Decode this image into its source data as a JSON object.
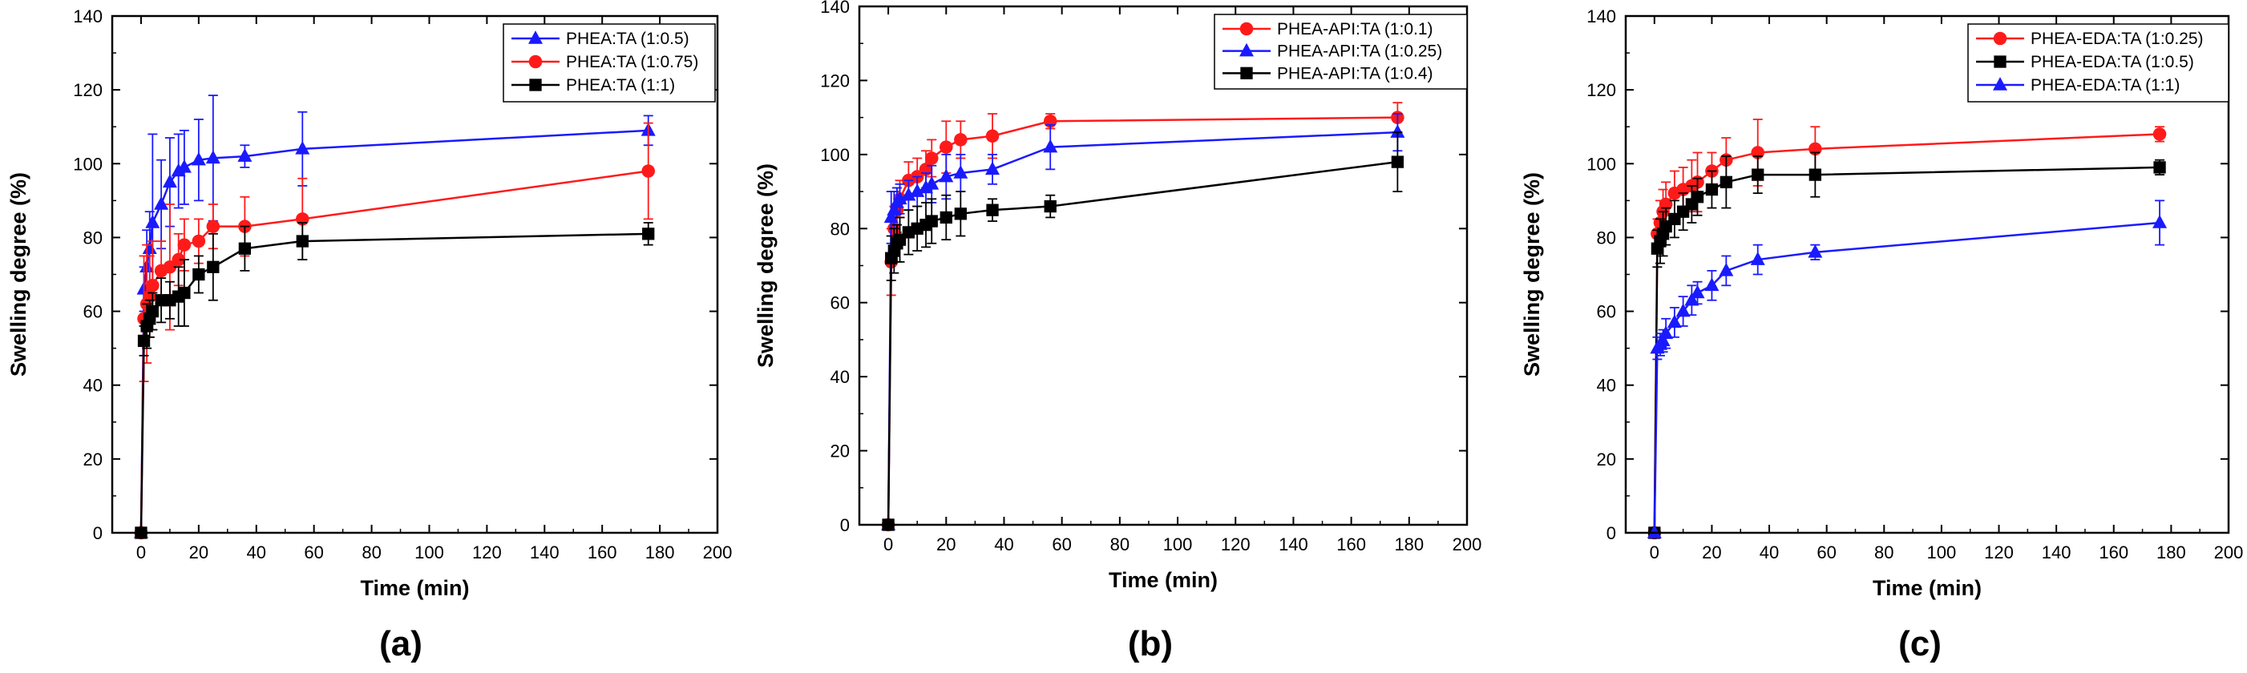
{
  "chart_data": [
    {
      "type": "line",
      "panel_label": "(a)",
      "xlabel": "Time (min)",
      "ylabel": "Swelling degree (%)",
      "xlim": [
        -10,
        200
      ],
      "ylim": [
        0,
        140
      ],
      "xticks": [
        0,
        20,
        40,
        60,
        80,
        100,
        120,
        140,
        160,
        180,
        200
      ],
      "yticks": [
        0,
        20,
        40,
        60,
        80,
        100,
        120,
        140
      ],
      "legend_position": "top-right",
      "x": [
        0,
        1,
        2,
        3,
        4,
        7,
        10,
        13,
        15,
        20,
        25,
        36,
        56,
        176
      ],
      "series": [
        {
          "name": "PHEA:TA (1:0.5)",
          "color": "#1a1aff",
          "marker": "triangle",
          "values": [
            0,
            66,
            72,
            77,
            84,
            89,
            95,
            98,
            99,
            101,
            101.5,
            102,
            104,
            109
          ],
          "errors": [
            0,
            6,
            10,
            10,
            24,
            12,
            12,
            10,
            10,
            11,
            17,
            3,
            10,
            4
          ]
        },
        {
          "name": "PHEA:TA (1:0.75)",
          "color": "#ff1a1a",
          "marker": "circle",
          "values": [
            0,
            58,
            62,
            64,
            67,
            71,
            72,
            74,
            78,
            79,
            83,
            83,
            85,
            98
          ],
          "errors": [
            0,
            17,
            16,
            11,
            12,
            8,
            17,
            7,
            7,
            6,
            6,
            8,
            11,
            13
          ]
        },
        {
          "name": "PHEA:TA (1:1)",
          "color": "#000000",
          "marker": "square",
          "values": [
            0,
            52,
            56,
            58,
            60,
            63,
            63,
            64,
            65,
            70,
            72,
            77,
            79,
            81
          ],
          "errors": [
            0,
            4,
            6,
            5,
            5,
            6,
            5,
            8,
            9,
            5,
            9,
            6,
            5,
            3
          ]
        }
      ]
    },
    {
      "type": "line",
      "panel_label": "(b)",
      "xlabel": "Time (min)",
      "ylabel": "Swelling degree (%)",
      "xlim": [
        -10,
        200
      ],
      "ylim": [
        0,
        140
      ],
      "xticks": [
        0,
        20,
        40,
        60,
        80,
        100,
        120,
        140,
        160,
        180,
        200
      ],
      "yticks": [
        0,
        20,
        40,
        60,
        80,
        100,
        120,
        140
      ],
      "legend_position": "top-right",
      "x": [
        0,
        1,
        2,
        3,
        4,
        7,
        10,
        13,
        15,
        20,
        25,
        36,
        56,
        176
      ],
      "series": [
        {
          "name": "PHEA-API:TA (1:0.1)",
          "color": "#ff1a1a",
          "marker": "circle",
          "values": [
            0,
            71,
            80,
            85,
            88,
            93,
            94,
            96,
            99,
            102,
            104,
            105,
            109,
            110
          ],
          "errors": [
            0,
            9,
            6,
            6,
            5,
            5,
            5,
            5,
            5,
            7,
            5,
            6,
            2,
            4
          ]
        },
        {
          "name": "PHEA-API:TA (1:0.25)",
          "color": "#1a1aff",
          "marker": "triangle",
          "values": [
            0,
            83,
            85,
            87,
            88,
            89,
            90,
            91,
            92,
            94,
            95,
            96,
            102,
            106
          ],
          "errors": [
            0,
            7,
            5,
            4,
            4,
            4,
            4,
            4,
            5,
            6,
            5,
            4,
            6,
            5
          ]
        },
        {
          "name": "PHEA-API:TA (1:0.4)",
          "color": "#000000",
          "marker": "square",
          "values": [
            0,
            72,
            74,
            76,
            77,
            79,
            80,
            81,
            82,
            83,
            84,
            85,
            86,
            98
          ],
          "errors": [
            0,
            6,
            6,
            5,
            6,
            6,
            6,
            6,
            6,
            6,
            6,
            3,
            3,
            8
          ]
        }
      ]
    },
    {
      "type": "line",
      "panel_label": "(c)",
      "xlabel": "Time (min)",
      "ylabel": "Swelling degree (%)",
      "xlim": [
        -10,
        200
      ],
      "ylim": [
        0,
        140
      ],
      "xticks": [
        0,
        20,
        40,
        60,
        80,
        100,
        120,
        140,
        160,
        180,
        200
      ],
      "yticks": [
        0,
        20,
        40,
        60,
        80,
        100,
        120,
        140
      ],
      "legend_position": "top-right",
      "x": [
        0,
        1,
        2,
        3,
        4,
        7,
        10,
        13,
        15,
        20,
        25,
        36,
        56,
        176
      ],
      "series": [
        {
          "name": "PHEA-EDA:TA (1:0.25)",
          "color": "#ff1a1a",
          "marker": "circle",
          "values": [
            0,
            81,
            84,
            87,
            89,
            92,
            93,
            94,
            95,
            98,
            101,
            103,
            104,
            108
          ],
          "errors": [
            0,
            4,
            6,
            6,
            6,
            6,
            6,
            7,
            8,
            5,
            6,
            9,
            6,
            2
          ]
        },
        {
          "name": "PHEA-EDA:TA (1:0.5)",
          "color": "#000000",
          "marker": "square",
          "values": [
            0,
            77,
            79,
            81,
            83,
            85,
            87,
            89,
            91,
            93,
            95,
            97,
            97,
            99
          ],
          "errors": [
            0,
            5,
            6,
            6,
            5,
            5,
            5,
            5,
            5,
            5,
            7,
            5,
            6,
            2
          ]
        },
        {
          "name": "PHEA-EDA:TA (1:1)",
          "color": "#1a1aff",
          "marker": "triangle",
          "values": [
            0,
            50,
            51,
            52,
            54,
            57,
            60,
            63,
            65,
            67,
            71,
            74,
            76,
            84
          ],
          "errors": [
            0,
            3,
            3,
            3,
            4,
            4,
            4,
            4,
            3,
            4,
            4,
            4,
            2,
            6
          ]
        }
      ]
    }
  ]
}
